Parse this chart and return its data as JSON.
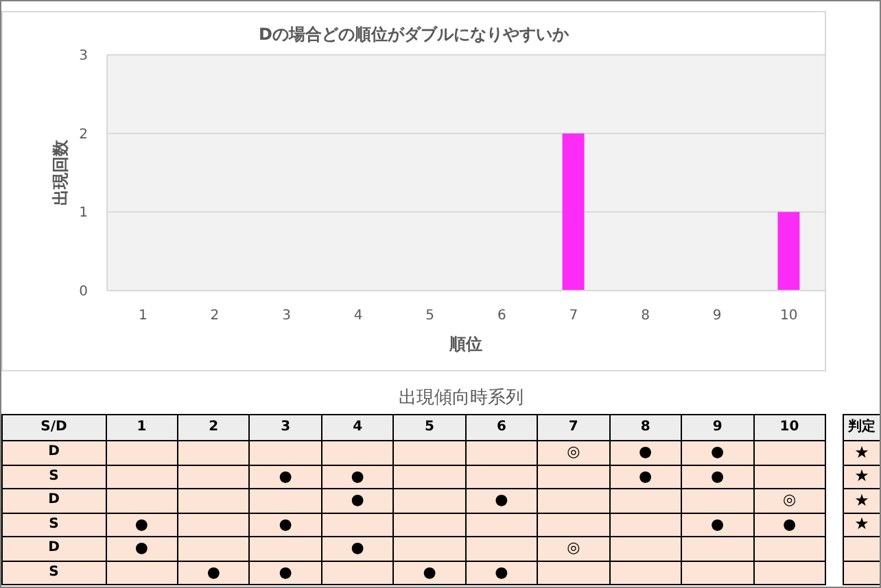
{
  "chart_data": [
    {
      "type": "bar",
      "title": "Dの場合どの順位がダブルになりやすいか",
      "xlabel": "順位",
      "ylabel": "出現回数",
      "categories": [
        "1",
        "2",
        "3",
        "4",
        "5",
        "6",
        "7",
        "8",
        "9",
        "10"
      ],
      "values": [
        0,
        0,
        0,
        0,
        0,
        0,
        2,
        0,
        0,
        1
      ],
      "color": "#fb2cf5",
      "ylim": [
        0,
        3
      ],
      "yticks": [
        0,
        1,
        2,
        3
      ],
      "grid": "y"
    },
    {
      "type": "heatmap",
      "title": "出現傾向時系列",
      "ylabel": "S/D",
      "y2label": "判定",
      "categories": [
        "1",
        "2",
        "3",
        "4",
        "5",
        "6",
        "7",
        "8",
        "9",
        "10"
      ],
      "y_categories": [
        "D",
        "S",
        "D",
        "S",
        "D",
        "S"
      ],
      "y2_categories": [
        "★",
        "★",
        "★",
        "★",
        null,
        null
      ],
      "cells": [
        [
          null,
          null,
          null,
          null,
          null,
          null,
          null,
          null,
          null,
          null
        ],
        [
          null,
          null,
          null,
          null,
          null,
          null,
          null,
          null,
          null,
          null
        ],
        [
          null,
          null,
          null,
          null,
          null,
          null,
          null,
          null,
          null,
          null
        ],
        [
          null,
          null,
          null,
          null,
          null,
          null,
          null,
          null,
          null,
          null
        ],
        [
          null,
          null,
          null,
          null,
          null,
          null,
          null,
          null,
          null,
          null
        ],
        [
          null,
          null,
          null,
          null,
          null,
          null,
          null,
          null,
          null,
          null
        ]
      ],
      "cell_labels": [
        [
          null,
          null,
          null,
          null,
          null,
          null,
          "◎",
          "●",
          "●",
          null
        ],
        [
          null,
          null,
          "●",
          "●",
          null,
          null,
          null,
          "●",
          "●",
          null
        ],
        [
          null,
          null,
          null,
          "●",
          null,
          "●",
          null,
          null,
          null,
          "◎"
        ],
        [
          "●",
          null,
          "●",
          null,
          null,
          null,
          null,
          null,
          "●",
          "●"
        ],
        [
          "●",
          null,
          null,
          "●",
          null,
          null,
          "◎",
          null,
          null,
          null
        ],
        [
          null,
          "●",
          "●",
          null,
          "●",
          "●",
          null,
          null,
          null,
          null
        ]
      ]
    }
  ]
}
